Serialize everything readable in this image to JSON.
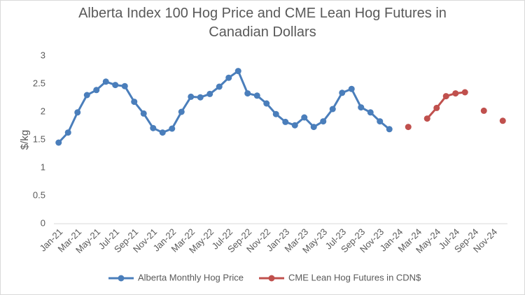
{
  "chart_data": {
    "type": "line",
    "title": "Alberta Index 100 Hog Price and CME Lean Hog Futures in Canadian Dollars",
    "y_label": "$/kg",
    "categories": [
      "Jan-21",
      null,
      "Mar-21",
      null,
      "May-21",
      null,
      "Jul-21",
      null,
      "Sep-21",
      null,
      "Nov-21",
      null,
      "Jan-22",
      null,
      "Mar-22",
      null,
      "May-22",
      null,
      "Jul-22",
      null,
      "Sep-22",
      null,
      "Nov-22",
      null,
      "Jan-23",
      null,
      "Mar-23",
      null,
      "May-23",
      null,
      "Jul-23",
      null,
      "Sep-23",
      null,
      "Nov-23",
      null,
      "Jan-24",
      null,
      "Mar-24",
      null,
      "May-24",
      null,
      "Jul-24",
      null,
      "Sep-24",
      null,
      "Nov-24",
      null
    ],
    "series": [
      {
        "name": "Alberta Monthly Hog Price",
        "color": "#4a7ebb",
        "values": [
          1.45,
          1.63,
          1.99,
          2.3,
          2.39,
          2.54,
          2.48,
          2.46,
          2.18,
          1.97,
          1.71,
          1.63,
          1.7,
          2.0,
          2.27,
          2.26,
          2.32,
          2.45,
          2.61,
          2.73,
          2.33,
          2.29,
          2.15,
          1.96,
          1.82,
          1.76,
          1.9,
          1.73,
          1.83,
          2.05,
          2.34,
          2.41,
          2.08,
          1.99,
          1.83,
          1.69,
          null,
          null,
          null,
          null,
          null,
          null,
          null,
          null,
          null,
          null,
          null,
          null
        ]
      },
      {
        "name": "CME Lean Hog Futures in CDN$",
        "color": "#c0504d",
        "values": [
          null,
          null,
          null,
          null,
          null,
          null,
          null,
          null,
          null,
          null,
          null,
          null,
          null,
          null,
          null,
          null,
          null,
          null,
          null,
          null,
          null,
          null,
          null,
          null,
          null,
          null,
          null,
          null,
          null,
          null,
          null,
          null,
          null,
          null,
          null,
          null,
          null,
          1.73,
          null,
          1.88,
          2.07,
          2.28,
          2.33,
          2.35,
          null,
          2.02,
          null,
          1.84
        ]
      }
    ],
    "ylim": [
      0,
      3
    ],
    "yticks": [
      0,
      0.5,
      1,
      1.5,
      2,
      2.5,
      3
    ],
    "grid": false,
    "legend": "bottom"
  }
}
